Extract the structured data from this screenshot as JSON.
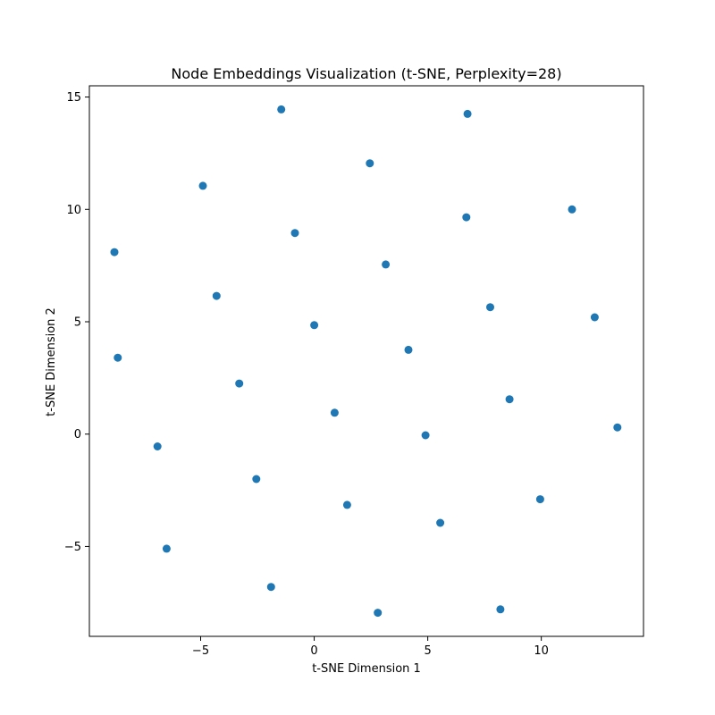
{
  "chart_data": {
    "type": "scatter",
    "title": "Node Embeddings Visualization (t-SNE, Perplexity=28)",
    "xlabel": "t-SNE Dimension 1",
    "ylabel": "t-SNE Dimension 2",
    "xlim": [
      -9.9,
      14.5
    ],
    "ylim": [
      -9.0,
      15.5
    ],
    "xticks": [
      -5,
      0,
      5,
      10
    ],
    "yticks": [
      -5,
      0,
      5,
      10,
      15
    ],
    "xtick_labels": [
      "−5",
      "0",
      "5",
      "10"
    ],
    "ytick_labels": [
      "−5",
      "0",
      "5",
      "10",
      "15"
    ],
    "grid": false,
    "marker_color": "#1f77b4",
    "x": [
      -1.45,
      6.75,
      2.45,
      -4.9,
      6.7,
      11.35,
      -0.85,
      -8.8,
      3.15,
      -4.3,
      7.75,
      12.35,
      0.0,
      -8.65,
      4.15,
      -3.3,
      8.6,
      0.9,
      13.35,
      -6.9,
      4.9,
      -2.55,
      9.95,
      1.45,
      5.55,
      -6.5,
      -1.9,
      2.8,
      8.2
    ],
    "y": [
      14.45,
      14.25,
      12.05,
      11.05,
      9.65,
      10.0,
      8.95,
      8.1,
      7.55,
      6.15,
      5.65,
      5.2,
      4.85,
      3.4,
      3.75,
      2.25,
      1.55,
      0.95,
      0.3,
      -0.55,
      -0.05,
      -2.0,
      -2.9,
      -3.15,
      -3.95,
      -5.1,
      -6.8,
      -7.95,
      -7.8
    ]
  }
}
